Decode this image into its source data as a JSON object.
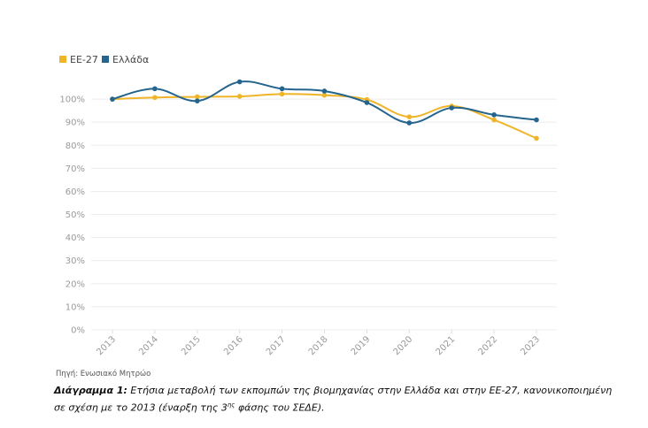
{
  "chart_data": {
    "type": "line",
    "categories": [
      "2013",
      "2014",
      "2015",
      "2016",
      "2017",
      "2018",
      "2019",
      "2020",
      "2021",
      "2022",
      "2023"
    ],
    "series": [
      {
        "name": "ΕΕ-27",
        "color": "#f0b429",
        "values": [
          100,
          100.7,
          101,
          101.2,
          102.2,
          101.7,
          99.8,
          92.3,
          97,
          91,
          83
        ]
      },
      {
        "name": "Ελλάδα",
        "color": "#24648d",
        "values": [
          100,
          104.5,
          99.2,
          107.5,
          104.5,
          103.5,
          98.5,
          89.7,
          96.2,
          93.2,
          91
        ]
      }
    ],
    "y_ticks": [
      "0%",
      "10%",
      "20%",
      "30%",
      "40%",
      "50%",
      "60%",
      "70%",
      "80%",
      "90%",
      "100%"
    ],
    "ylim": [
      0,
      110
    ],
    "grid": true,
    "legend_position": "top-left",
    "source": "Πηγή: Ενωσιακό Μητρώο",
    "caption": {
      "label": "Διάγραμμα 1:",
      "text_part1": " Ετήσια μεταβολή των εκπομπών της βιομηχανίας στην Ελλάδα και στην ΕΕ-27, κανονικοποιημένη σε σχέση με το 2013 (έναρξη της 3",
      "superscript": "ης",
      "text_part2": " φάσης του ΣΕΔΕ)."
    }
  }
}
